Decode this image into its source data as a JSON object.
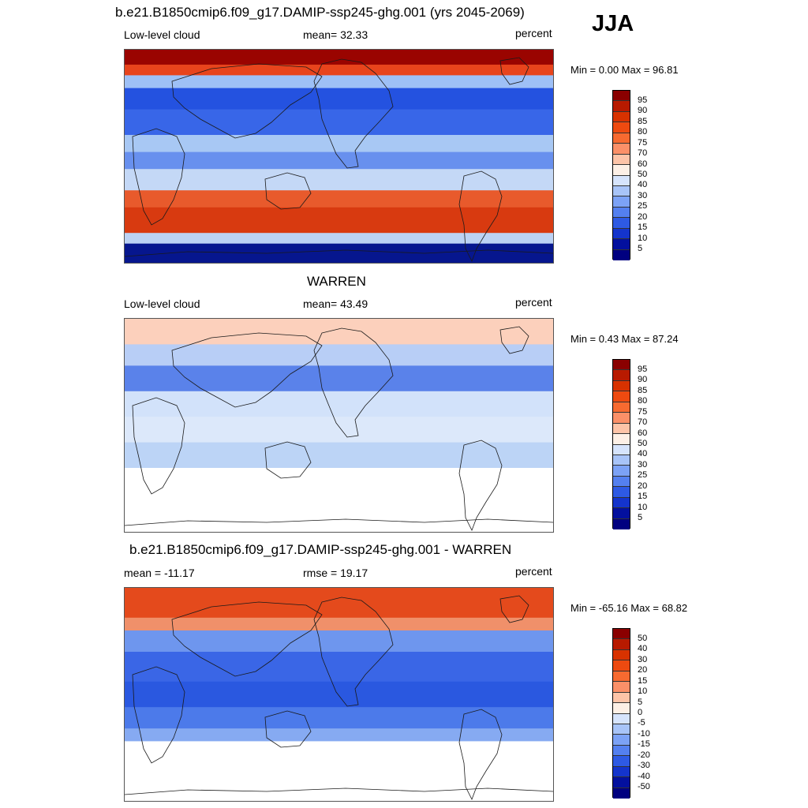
{
  "season_label": "JJA",
  "panels": [
    {
      "title": "b.e21.B1850cmip6.f09_g17.DAMIP-ssp245-ghg.001 (yrs 2045-2069)",
      "left_text": "Low-level cloud",
      "center_text": "mean=  32.33",
      "right_text": "percent",
      "minmax": "Min =   0.00 Max =  96.81",
      "colorbar_labels": [
        "95",
        "90",
        "85",
        "80",
        "75",
        "70",
        "60",
        "50",
        "40",
        "30",
        "25",
        "20",
        "15",
        "10",
        "5"
      ],
      "colorbar_colors": [
        "#8a0000",
        "#b81a00",
        "#d83200",
        "#ee4a10",
        "#f76a30",
        "#fb9068",
        "#fdc4a8",
        "#fdf0e6",
        "#d6e4fc",
        "#a8c4f8",
        "#7ca2f6",
        "#5480f0",
        "#2e5ae4",
        "#1434cc",
        "#03109e",
        "#000080"
      ],
      "map_bands": [
        {
          "color": "#9a0400",
          "stop": 0.07
        },
        {
          "color": "#e8441c",
          "stop": 0.12
        },
        {
          "color": "#9ec0f6",
          "stop": 0.18
        },
        {
          "color": "#2452e0",
          "stop": 0.28
        },
        {
          "color": "#3866e8",
          "stop": 0.4
        },
        {
          "color": "#a8c8f4",
          "stop": 0.48
        },
        {
          "color": "#6890ee",
          "stop": 0.56
        },
        {
          "color": "#c4d8f6",
          "stop": 0.66
        },
        {
          "color": "#e85a2c",
          "stop": 0.74
        },
        {
          "color": "#d83a10",
          "stop": 0.86
        },
        {
          "color": "#bcd2f4",
          "stop": 0.91
        },
        {
          "color": "#06168e",
          "stop": 1.0
        }
      ]
    },
    {
      "title": "WARREN",
      "left_text": "Low-level cloud",
      "center_text": "mean=  43.49",
      "right_text": "percent",
      "minmax": "Min =   0.43 Max =  87.24",
      "colorbar_labels": [
        "95",
        "90",
        "85",
        "80",
        "75",
        "70",
        "60",
        "50",
        "40",
        "30",
        "25",
        "20",
        "15",
        "10",
        "5"
      ],
      "colorbar_colors": [
        "#8a0000",
        "#b81a00",
        "#d83200",
        "#ee4a10",
        "#f76a30",
        "#fb9068",
        "#fdc4a8",
        "#fdf0e6",
        "#d6e4fc",
        "#a8c4f8",
        "#7ca2f6",
        "#5480f0",
        "#2e5ae4",
        "#1434cc",
        "#03109e",
        "#000080"
      ],
      "map_bands": [
        {
          "color": "#fcd0bc",
          "stop": 0.12
        },
        {
          "color": "#b8cef6",
          "stop": 0.22
        },
        {
          "color": "#5a82ea",
          "stop": 0.34
        },
        {
          "color": "#d2e2fa",
          "stop": 0.46
        },
        {
          "color": "#dce8fa",
          "stop": 0.58
        },
        {
          "color": "#bcd4f6",
          "stop": 0.7
        },
        {
          "color": "#ffffff",
          "stop": 1.0
        }
      ]
    },
    {
      "title": "b.e21.B1850cmip6.f09_g17.DAMIP-ssp245-ghg.001 - WARREN",
      "left_text": "mean = -11.17",
      "center_text": "rmse =  19.17",
      "right_text": "percent",
      "minmax": "Min = -65.16 Max =  68.82",
      "colorbar_labels": [
        "50",
        "40",
        "30",
        "20",
        "15",
        "10",
        "5",
        "0",
        "-5",
        "-10",
        "-15",
        "-20",
        "-30",
        "-40",
        "-50"
      ],
      "colorbar_colors": [
        "#8a0000",
        "#b81a00",
        "#d83200",
        "#ee4a10",
        "#f76a30",
        "#fb9068",
        "#fdc4a8",
        "#fdf0e6",
        "#d6e4fc",
        "#a8c4f8",
        "#7ca2f6",
        "#5480f0",
        "#2e5ae4",
        "#1434cc",
        "#03109e",
        "#000080"
      ],
      "map_bands": [
        {
          "color": "#e44a1c",
          "stop": 0.14
        },
        {
          "color": "#f0906a",
          "stop": 0.2
        },
        {
          "color": "#6e96ee",
          "stop": 0.3
        },
        {
          "color": "#3a66e6",
          "stop": 0.44
        },
        {
          "color": "#2a58e0",
          "stop": 0.56
        },
        {
          "color": "#4c7aea",
          "stop": 0.66
        },
        {
          "color": "#86aaf2",
          "stop": 0.72
        },
        {
          "color": "#ffffff",
          "stop": 1.0
        }
      ]
    }
  ]
}
